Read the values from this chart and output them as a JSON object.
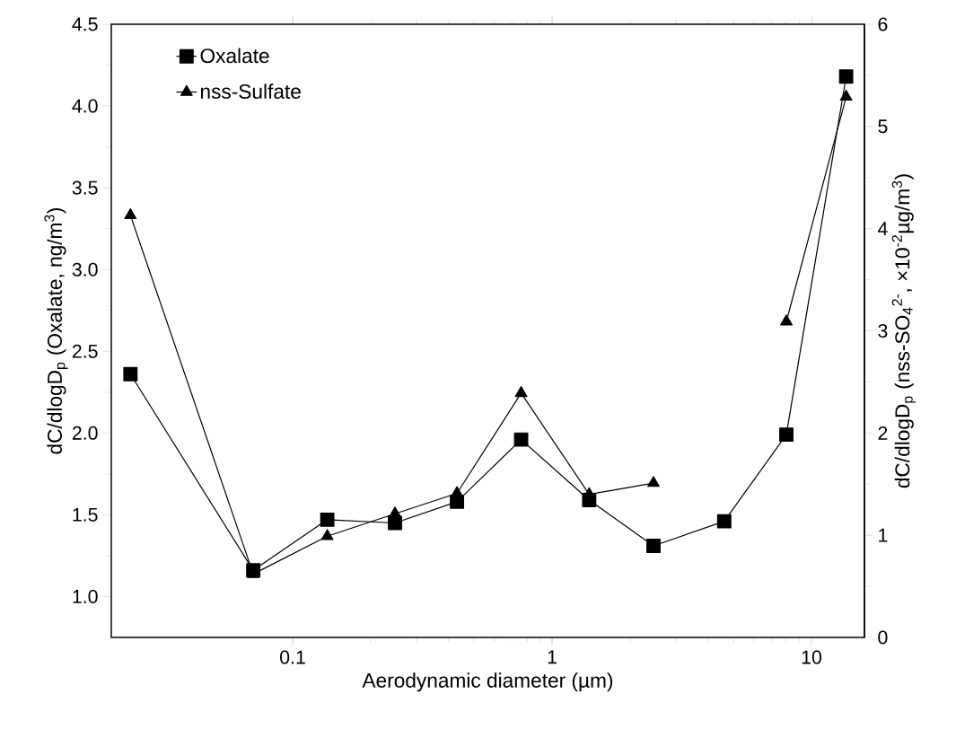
{
  "chart_data": {
    "type": "line",
    "xlabel": "Aerodynamic diameter (µm)",
    "ylabel": "dC/dlogD$_{p}$ (Oxalate, ng/m$^{3}$)",
    "y2label": "dC/dlogD$_{p}$ (nss-SO$_{4}$$^{2-}$, ×10$^{-2}$µg/m$^{3}$)",
    "log": "x",
    "xlim": [
      0.02,
      16
    ],
    "xticks": [
      0.1,
      1,
      10
    ],
    "ylim": [
      0.75,
      4.5
    ],
    "yticks": [
      {
        "value": 1,
        "label": "1.0"
      },
      {
        "value": 1.5,
        "label": "1.5"
      },
      {
        "value": 2,
        "label": "2.0"
      },
      {
        "value": 2.5,
        "label": "2.5"
      },
      {
        "value": 3,
        "label": "3.0"
      },
      {
        "value": 3.5,
        "label": "3.5"
      },
      {
        "value": 4,
        "label": "4.0"
      },
      {
        "value": 4.5,
        "label": "4.5"
      }
    ],
    "y2lim": [
      0,
      6
    ],
    "y2ticks": [
      0,
      1,
      2,
      3,
      4,
      5,
      6
    ],
    "legend": "top left",
    "grid": false,
    "line_style": "solid",
    "series": [
      {
        "name": "Oxalate",
        "color": "#000000",
        "marker": "square",
        "x": [
          0.0237,
          0.0705,
          0.136,
          0.248,
          0.43,
          0.76,
          1.39,
          2.46,
          4.61,
          8.0,
          13.6
        ],
        "values": [
          2.36,
          1.16,
          1.47,
          1.45,
          1.58,
          1.96,
          1.59,
          1.31,
          1.46,
          1.99,
          4.18
        ]
      },
      {
        "name": "nss-Sulfate",
        "color": "#000000",
        "marker": "triangle",
        "axis": "y2",
        "x": [
          0.0237,
          0.0705,
          0.136,
          0.248,
          0.43,
          0.76,
          1.39,
          2.46,
          4.61,
          8.0,
          13.6
        ],
        "values": [
          4.13,
          0.62,
          0.99,
          1.21,
          1.41,
          2.39,
          1.4,
          1.51,
          null,
          3.09,
          5.29
        ]
      }
    ]
  }
}
